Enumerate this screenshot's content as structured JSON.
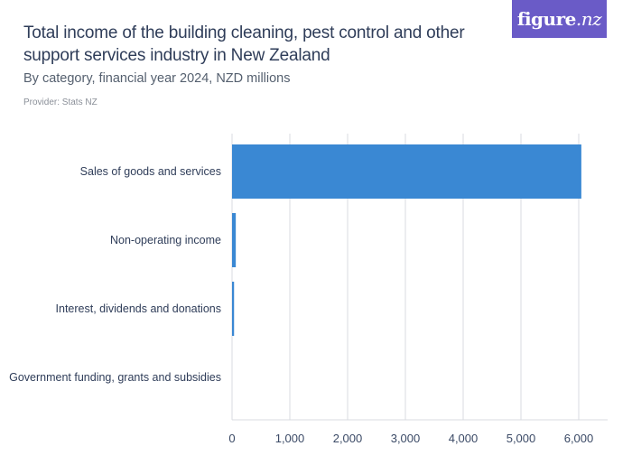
{
  "header": {
    "title": "Total income of the building cleaning, pest control and other support services industry in New Zealand",
    "subtitle": "By category, financial year 2024, NZD millions",
    "provider": "Provider: Stats NZ"
  },
  "logo": {
    "text_main": "figure",
    "text_suffix": ".nz",
    "background": "#6a5bc7"
  },
  "colors": {
    "bar": "#3a88d3",
    "grid": "#d9dbe0",
    "axis_text": "#3b4a66",
    "category_text": "#2f3d59"
  },
  "chart_data": {
    "type": "bar",
    "orientation": "horizontal",
    "categories": [
      "Sales of goods and services",
      "Non-operating income",
      "Interest, dividends and donations",
      "Government funding, grants and subsidies"
    ],
    "values": [
      6045,
      65,
      35,
      0
    ],
    "xlim": [
      0,
      6500
    ],
    "xticks": [
      0,
      1000,
      2000,
      3000,
      4000,
      5000,
      6000
    ],
    "xtick_labels": [
      "0",
      "1,000",
      "2,000",
      "3,000",
      "4,000",
      "5,000",
      "6,000"
    ],
    "xlabel": "",
    "ylabel": "",
    "grid": true
  }
}
